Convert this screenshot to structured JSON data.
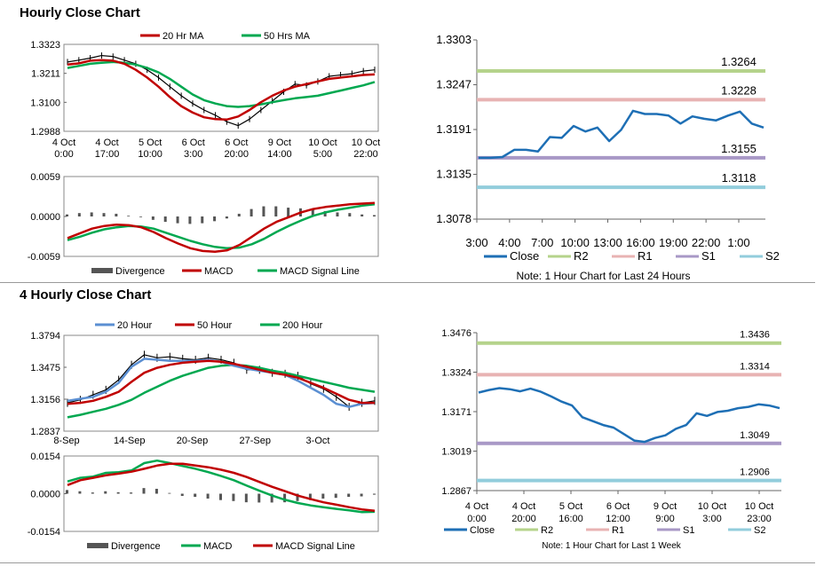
{
  "sections": [
    {
      "title": "Hourly Close Chart"
    },
    {
      "title": "4 Hourly Close Chart"
    }
  ],
  "chart_data": [
    {
      "id": "hourly_price",
      "type": "line",
      "ylim": [
        1.2988,
        1.3323
      ],
      "yticks": [
        "1.3323",
        "1.3211",
        "1.3100",
        "1.2988"
      ],
      "xticks": [
        {
          "top": "4 Oct",
          "bottom": "0:00"
        },
        {
          "top": "4 Oct",
          "bottom": "17:00"
        },
        {
          "top": "5 Oct",
          "bottom": "10:00"
        },
        {
          "top": "6 Oct",
          "bottom": "3:00"
        },
        {
          "top": "6 Oct",
          "bottom": "20:00"
        },
        {
          "top": "9 Oct",
          "bottom": "14:00"
        },
        {
          "top": "10 Oct",
          "bottom": "5:00"
        },
        {
          "top": "10 Oct",
          "bottom": "22:00"
        }
      ],
      "legend": [
        "20 Hr MA",
        "50 Hrs MA"
      ],
      "colors": {
        "price": "#000000",
        "ma20": "#c00000",
        "ma50": "#00a850"
      },
      "price": [
        1.3255,
        1.3262,
        1.327,
        1.328,
        1.3276,
        1.3262,
        1.3248,
        1.3225,
        1.3195,
        1.316,
        1.3125,
        1.3095,
        1.307,
        1.305,
        1.3025,
        1.301,
        1.3035,
        1.307,
        1.3105,
        1.314,
        1.317,
        1.3165,
        1.318,
        1.32,
        1.3205,
        1.321,
        1.322,
        1.3225
      ],
      "ma20": [
        1.3245,
        1.325,
        1.326,
        1.3262,
        1.326,
        1.3248,
        1.3225,
        1.3195,
        1.316,
        1.312,
        1.3085,
        1.306,
        1.3042,
        1.3035,
        1.3033,
        1.3045,
        1.307,
        1.31,
        1.3125,
        1.3145,
        1.316,
        1.317,
        1.318,
        1.319,
        1.3195,
        1.32,
        1.3205,
        1.3207
      ],
      "ma50": [
        1.3232,
        1.324,
        1.3248,
        1.3252,
        1.3255,
        1.3252,
        1.3245,
        1.3232,
        1.3215,
        1.319,
        1.316,
        1.313,
        1.3108,
        1.3095,
        1.3085,
        1.3082,
        1.3085,
        1.3092,
        1.31,
        1.3108,
        1.3115,
        1.312,
        1.3125,
        1.3135,
        1.3145,
        1.3155,
        1.3165,
        1.3178
      ]
    },
    {
      "id": "hourly_macd",
      "type": "line",
      "ylim": [
        -0.0059,
        0.0059
      ],
      "yticks": [
        "0.0059",
        "0.0000",
        "-0.0059"
      ],
      "legend": [
        "Divergence",
        "MACD",
        "MACD Signal Line"
      ],
      "colors": {
        "divergence": "#555555",
        "macd": "#c00000",
        "signal": "#00a850"
      },
      "macd": [
        -0.0032,
        -0.0025,
        -0.0018,
        -0.0014,
        -0.0012,
        -0.0013,
        -0.0016,
        -0.0023,
        -0.0032,
        -0.004,
        -0.0047,
        -0.0051,
        -0.0052,
        -0.005,
        -0.0042,
        -0.003,
        -0.0018,
        -0.0008,
        -0.0001,
        0.0006,
        0.0011,
        0.0014,
        0.0016,
        0.0018,
        0.0019,
        0.002
      ],
      "signal": [
        -0.0035,
        -0.003,
        -0.0024,
        -0.0019,
        -0.0016,
        -0.0014,
        -0.0015,
        -0.0018,
        -0.0024,
        -0.003,
        -0.0036,
        -0.0041,
        -0.0045,
        -0.0047,
        -0.0046,
        -0.0041,
        -0.0033,
        -0.0023,
        -0.0014,
        -0.0006,
        0.0001,
        0.0006,
        0.001,
        0.0013,
        0.0016,
        0.0018
      ],
      "divergence": [
        0.0003,
        0.0005,
        0.0006,
        0.0005,
        0.0004,
        0.0001,
        -0.0001,
        -0.0005,
        -0.0008,
        -0.001,
        -0.0011,
        -0.001,
        -0.0007,
        -0.0003,
        0.0004,
        0.0011,
        0.0015,
        0.0015,
        0.0013,
        0.0012,
        0.001,
        0.0008,
        0.0006,
        0.0005,
        0.0003,
        0.0002
      ]
    },
    {
      "id": "hourly_pivot",
      "type": "line",
      "ylim": [
        1.3078,
        1.3303
      ],
      "yticks": [
        "1.3303",
        "1.3247",
        "1.3191",
        "1.3135",
        "1.3078"
      ],
      "xticks": [
        "3:00",
        "4:00",
        "7:00",
        "10:00",
        "13:00",
        "16:00",
        "19:00",
        "22:00",
        "1:00"
      ],
      "levels": [
        {
          "name": "R2",
          "value": 1.3264,
          "label": "1.3264",
          "color": "#b5d38b"
        },
        {
          "name": "R1",
          "value": 1.3228,
          "label": "1.3228",
          "color": "#e8b3b3"
        },
        {
          "name": "S1",
          "value": 1.3155,
          "label": "1.3155",
          "color": "#a898c6"
        },
        {
          "name": "S2",
          "value": 1.3118,
          "label": "1.3118",
          "color": "#92cddc"
        }
      ],
      "close": [
        1.3155,
        1.3155,
        1.3156,
        1.3165,
        1.3165,
        1.3163,
        1.3181,
        1.318,
        1.3195,
        1.3188,
        1.3193,
        1.3176,
        1.319,
        1.3214,
        1.321,
        1.321,
        1.3208,
        1.3198,
        1.3207,
        1.3204,
        1.3202,
        1.3208,
        1.3213,
        1.3198,
        1.3193
      ],
      "close_color": "#1e6fb5",
      "legend": [
        "Close",
        "R2",
        "R1",
        "S1",
        "S2"
      ],
      "note": "Note: 1 Hour Chart for Last 24 Hours"
    },
    {
      "id": "4hourly_price",
      "type": "line",
      "ylim": [
        1.2837,
        1.3794
      ],
      "yticks": [
        "1.3794",
        "1.3475",
        "1.3156",
        "1.2837"
      ],
      "xticks": [
        "8-Sep",
        "14-Sep",
        "20-Sep",
        "27-Sep",
        "3-Oct"
      ],
      "legend": [
        "20 Hour",
        "50 Hour",
        "200 Hour"
      ],
      "colors": {
        "price": "#000000",
        "h20": "#5b8fd2",
        "h50": "#c00000",
        "h200": "#00a850"
      },
      "price": [
        1.312,
        1.315,
        1.32,
        1.325,
        1.335,
        1.35,
        1.36,
        1.357,
        1.358,
        1.356,
        1.355,
        1.357,
        1.355,
        1.352,
        1.345,
        1.345,
        1.342,
        1.341,
        1.339,
        1.331,
        1.326,
        1.318,
        1.308,
        1.312,
        1.314
      ],
      "h20": [
        1.314,
        1.316,
        1.318,
        1.323,
        1.332,
        1.348,
        1.356,
        1.355,
        1.354,
        1.354,
        1.354,
        1.355,
        1.353,
        1.349,
        1.346,
        1.344,
        1.342,
        1.34,
        1.334,
        1.327,
        1.32,
        1.311,
        1.308,
        1.311,
        1.312
      ],
      "h50": [
        1.311,
        1.312,
        1.314,
        1.318,
        1.323,
        1.333,
        1.342,
        1.347,
        1.35,
        1.352,
        1.353,
        1.354,
        1.353,
        1.351,
        1.348,
        1.345,
        1.342,
        1.34,
        1.337,
        1.332,
        1.327,
        1.321,
        1.315,
        1.312,
        1.312
      ],
      "h200": [
        1.2975,
        1.3,
        1.303,
        1.306,
        1.31,
        1.315,
        1.322,
        1.328,
        1.334,
        1.339,
        1.343,
        1.347,
        1.349,
        1.35,
        1.349,
        1.347,
        1.344,
        1.342,
        1.339,
        1.336,
        1.333,
        1.33,
        1.327,
        1.325,
        1.323
      ]
    },
    {
      "id": "4hourly_macd",
      "type": "line",
      "ylim": [
        -0.0154,
        0.0154
      ],
      "yticks": [
        "0.0154",
        "0.0000",
        "-0.0154"
      ],
      "legend": [
        "Divergence",
        "MACD",
        "MACD Signal Line"
      ],
      "colors": {
        "divergence": "#555555",
        "macd": "#00a850",
        "signal": "#c00000"
      },
      "macd": [
        0.005,
        0.0065,
        0.007,
        0.0085,
        0.0088,
        0.0095,
        0.0125,
        0.0135,
        0.0125,
        0.0113,
        0.0102,
        0.0088,
        0.0072,
        0.0055,
        0.0033,
        0.0012,
        -0.0008,
        -0.0025,
        -0.0038,
        -0.0048,
        -0.0055,
        -0.0062,
        -0.0068,
        -0.0075,
        -0.0074
      ],
      "signal": [
        0.0035,
        0.0055,
        0.0065,
        0.0075,
        0.0082,
        0.009,
        0.0102,
        0.0115,
        0.0122,
        0.0122,
        0.0115,
        0.0108,
        0.0098,
        0.0085,
        0.0068,
        0.0048,
        0.0028,
        0.001,
        -0.0008,
        -0.0022,
        -0.0035,
        -0.0045,
        -0.0055,
        -0.0064,
        -0.007
      ],
      "divergence": [
        0.0015,
        0.001,
        0.0005,
        0.001,
        0.0006,
        0.0005,
        0.0023,
        0.002,
        0.0003,
        -0.0009,
        -0.0013,
        -0.002,
        -0.0026,
        -0.003,
        -0.0035,
        -0.0036,
        -0.0036,
        -0.0035,
        -0.003,
        -0.0026,
        -0.002,
        -0.0017,
        -0.0013,
        -0.0011,
        -0.0004
      ]
    },
    {
      "id": "4hourly_pivot",
      "type": "line",
      "ylim": [
        1.2867,
        1.3476
      ],
      "yticks": [
        "1.3476",
        "1.3324",
        "1.3171",
        "1.3019",
        "1.2867"
      ],
      "xticks": [
        {
          "top": "4 Oct",
          "bottom": "0:00"
        },
        {
          "top": "4 Oct",
          "bottom": "20:00"
        },
        {
          "top": "5 Oct",
          "bottom": "16:00"
        },
        {
          "top": "6 Oct",
          "bottom": "12:00"
        },
        {
          "top": "9 Oct",
          "bottom": "9:00"
        },
        {
          "top": "10 Oct",
          "bottom": "3:00"
        },
        {
          "top": "10 Oct",
          "bottom": "23:00"
        }
      ],
      "levels": [
        {
          "name": "R2",
          "value": 1.3436,
          "label": "1.3436",
          "color": "#b5d38b"
        },
        {
          "name": "R1",
          "value": 1.3314,
          "label": "1.3314",
          "color": "#e8b3b3"
        },
        {
          "name": "S1",
          "value": 1.3049,
          "label": "1.3049",
          "color": "#a898c6"
        },
        {
          "name": "S2",
          "value": 1.2906,
          "label": "1.2906",
          "color": "#92cddc"
        }
      ],
      "close": [
        1.3245,
        1.3255,
        1.3262,
        1.3258,
        1.325,
        1.326,
        1.3248,
        1.323,
        1.321,
        1.3195,
        1.315,
        1.3135,
        1.312,
        1.311,
        1.3085,
        1.306,
        1.3055,
        1.307,
        1.308,
        1.3105,
        1.312,
        1.3165,
        1.3155,
        1.317,
        1.3175,
        1.3185,
        1.319,
        1.32,
        1.3195,
        1.3185
      ],
      "close_color": "#1e6fb5",
      "legend": [
        "Close",
        "R2",
        "R1",
        "S1",
        "S2"
      ],
      "note": "Note: 1 Hour Chart for Last 1 Week"
    }
  ]
}
